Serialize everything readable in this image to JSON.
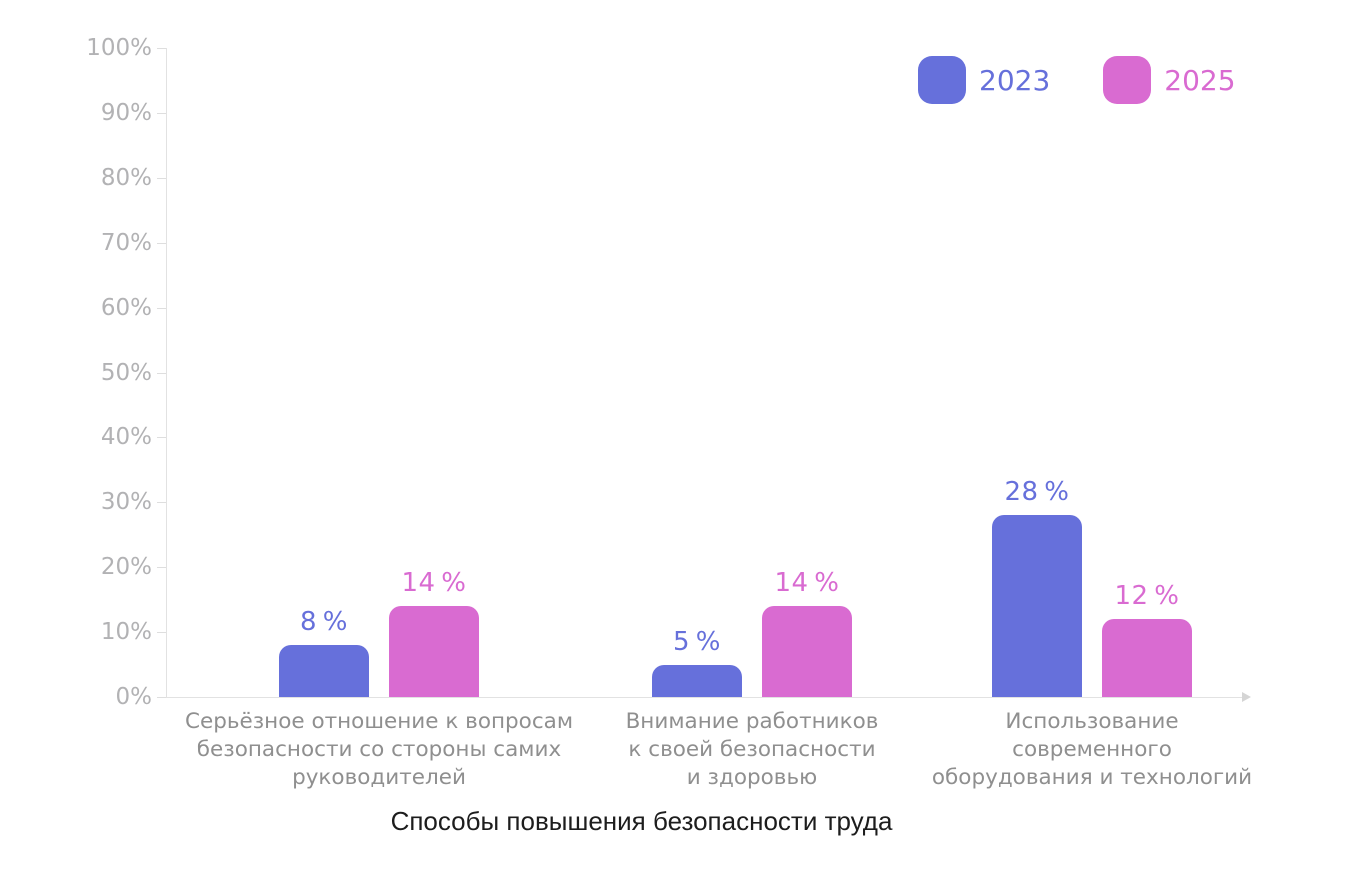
{
  "chart_data": {
    "type": "bar",
    "title": "Способы повышения безопасности труда",
    "xlabel": "Способы повышения безопасности труда",
    "ylabel": "",
    "ylim": [
      0,
      100
    ],
    "grid": false,
    "legend_position": "top-right",
    "value_suffix": " %",
    "y_tick_labels": [
      "100%",
      "90%",
      "80%",
      "70%",
      "60%",
      "50%",
      "40%",
      "30%",
      "20%",
      "10%",
      "0%"
    ],
    "categories": [
      "Серьёзное отношение к вопросам безопасности со стороны самих руководителей",
      "Внимание работников к своей безопасности и здоровью",
      "Использование современного оборудования и технологий"
    ],
    "category_lines": [
      [
        "Серьёзное отношение к вопросам",
        "безопасности со стороны самих",
        "руководителей"
      ],
      [
        "Внимание работников",
        "к своей безопасности",
        "и здоровью"
      ],
      [
        "Использование",
        "современного",
        "оборудования и технологий"
      ]
    ],
    "series": [
      {
        "name": "2023",
        "color": "#6670db",
        "values": [
          8,
          5,
          28
        ],
        "value_labels": [
          "8 %",
          "5 %",
          "28 %"
        ]
      },
      {
        "name": "2025",
        "color": "#d96bd1",
        "values": [
          14,
          14,
          12
        ],
        "value_labels": [
          "14 %",
          "14 %",
          "12 %"
        ]
      }
    ]
  },
  "colors": {
    "series_2023": "#6670db",
    "series_2025": "#d96bd1",
    "axis_line": "#e2e2e2",
    "tick_label": "#b2b2b4",
    "category_label": "#8f8f8f",
    "title_text": "#1d1d1d",
    "background": "#ffffff"
  }
}
